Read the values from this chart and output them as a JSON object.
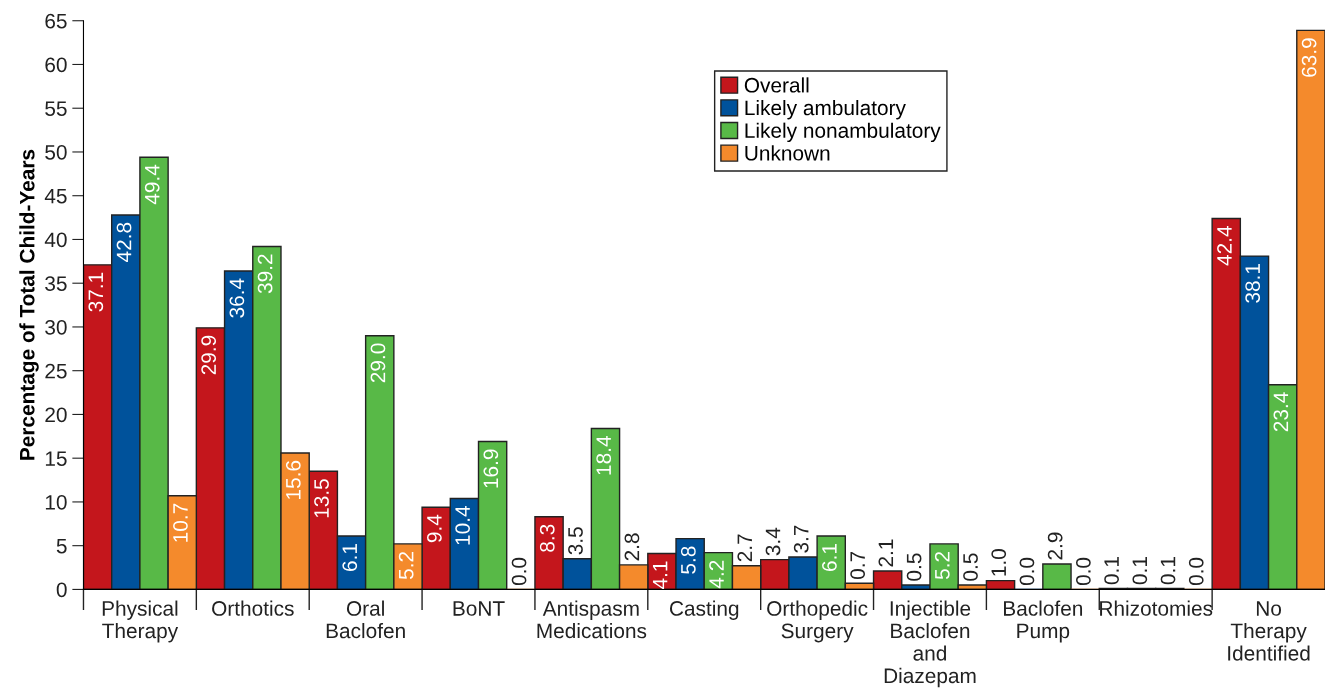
{
  "chart_data": {
    "type": "bar",
    "ylabel": "Percentage of Total Child-Years",
    "categories": [
      "Physical\nTherapy",
      "Orthotics",
      "Oral\nBaclofen",
      "BoNT",
      "Antispasm\nMedications",
      "Casting",
      "Orthopedic\nSurgery",
      "Injectible\nBaclofen\nand\nDiazepam",
      "Baclofen\nPump",
      "Rhizotomies",
      "No\nTherapy\nIdentified"
    ],
    "series": [
      {
        "name": "Overall",
        "color": "#c4161c",
        "values": [
          37.1,
          29.9,
          13.5,
          9.4,
          8.3,
          4.1,
          3.4,
          2.1,
          1.0,
          0.1,
          42.4
        ],
        "value_labels": [
          "37.1",
          "29.9",
          "13.5",
          "9.4",
          "8.3",
          "4.1",
          "3.4",
          "2.1",
          "1.0",
          "0.1",
          "42.4"
        ]
      },
      {
        "name": "Likely ambulatory",
        "color": "#00529b",
        "values": [
          42.8,
          36.4,
          6.1,
          10.4,
          3.5,
          5.8,
          3.7,
          0.5,
          0.0,
          0.1,
          38.1
        ],
        "value_labels": [
          "42.8",
          "36.4",
          "6.1",
          "10.4",
          "3.5",
          "5.8",
          "3.7",
          "0.5",
          "0.0",
          "0.1",
          "38.1"
        ]
      },
      {
        "name": "Likely nonambulatory",
        "color": "#58b947",
        "values": [
          49.4,
          39.2,
          29.0,
          16.9,
          18.4,
          4.2,
          6.1,
          5.2,
          2.9,
          0.1,
          23.4
        ],
        "value_labels": [
          "49.4",
          "39.2",
          "29.0",
          "16.9",
          "18.4",
          "4.2",
          "6.1",
          "5.2",
          "2.9",
          "0.1",
          "23.4"
        ]
      },
      {
        "name": "Unknown",
        "color": "#f48a2c",
        "values": [
          10.7,
          15.6,
          5.2,
          0.0,
          2.8,
          2.7,
          0.7,
          0.5,
          0.0,
          0.0,
          63.9
        ],
        "value_labels": [
          "10.7",
          "15.6",
          "5.2",
          "0.0",
          "2.8",
          "2.7",
          "0.7",
          "0.5",
          "0.0",
          "0.0",
          "63.9"
        ]
      }
    ],
    "ylim": [
      0,
      65
    ],
    "yticks": [
      0,
      5,
      10,
      15,
      20,
      25,
      30,
      35,
      40,
      45,
      50,
      55,
      60,
      65
    ],
    "grid": false,
    "legend": "top center"
  }
}
